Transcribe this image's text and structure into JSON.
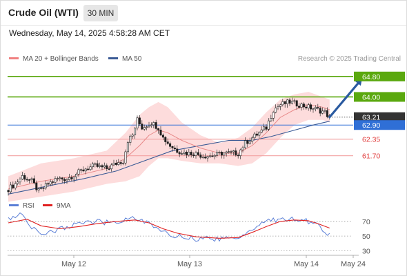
{
  "header": {
    "title": "Crude Oil (WTI)",
    "timeframe": "30 MIN"
  },
  "datetime": "Wednesday, May 14, 2025 4:58:28 AM CET",
  "legend": {
    "items": [
      {
        "label": "MA 20 + Bollinger Bands",
        "color": "#f08080"
      },
      {
        "label": "MA 50",
        "color": "#3a5a95"
      }
    ],
    "credit": "Research © 2025 Trading Central"
  },
  "colors": {
    "resistance": "#5aa80e",
    "current": "#333333",
    "pivot": "#2f6fd6",
    "support": "#e03a3a",
    "support_line": "#f2a3a3",
    "band": "#fddcdc",
    "ma20": "#e88a8a",
    "ma50": "#3a5a95",
    "candle_up": "#2e7d32",
    "candle_down": "#c62828",
    "rsi": "#5b7fd6",
    "rsi_ma": "#e02020",
    "arrow": "#2a5aa0"
  },
  "levels": {
    "resistances": [
      {
        "label": "64.80",
        "value": 64.8
      },
      {
        "label": "64.00",
        "value": 64.0
      }
    ],
    "current": {
      "label": "63.21",
      "value": 63.21
    },
    "pivot": {
      "label": "62.90",
      "value": 62.9
    },
    "supports": [
      {
        "label": "62.35",
        "value": 62.35
      },
      {
        "label": "61.70",
        "value": 61.7
      }
    ]
  },
  "rsi_panel": {
    "legend": [
      {
        "label": "RSI",
        "color": "#5b7fd6"
      },
      {
        "label": "9MA",
        "color": "#e02020"
      }
    ],
    "ticks": [
      {
        "label": "70",
        "value": 70
      },
      {
        "label": "50",
        "value": 50
      },
      {
        "label": "30",
        "value": 30
      }
    ]
  },
  "x_axis": {
    "ticks": [
      "May 12",
      "May 13",
      "May 14",
      "May 24"
    ]
  },
  "chart_data": [
    {
      "type": "candlestick",
      "title": "Crude Oil (WTI)",
      "timeframe": "30 MIN",
      "ylim": [
        60.1,
        65.2
      ],
      "close_path": [
        [
          0,
          60.4
        ],
        [
          3,
          60.6
        ],
        [
          6,
          60.9
        ],
        [
          10,
          60.7
        ],
        [
          13,
          60.3
        ],
        [
          17,
          60.6
        ],
        [
          21,
          60.8
        ],
        [
          25,
          60.8
        ],
        [
          29,
          61.0
        ],
        [
          33,
          61.2
        ],
        [
          37,
          61.3
        ],
        [
          42,
          61.2
        ],
        [
          46,
          61.4
        ],
        [
          49,
          61.5
        ],
        [
          51,
          62.3
        ],
        [
          53,
          62.5
        ],
        [
          55,
          63.1
        ],
        [
          57,
          62.8
        ],
        [
          61,
          63.0
        ],
        [
          64,
          62.8
        ],
        [
          66,
          62.4
        ],
        [
          69,
          62.1
        ],
        [
          72,
          61.9
        ],
        [
          76,
          61.8
        ],
        [
          79,
          61.8
        ],
        [
          83,
          61.7
        ],
        [
          87,
          61.7
        ],
        [
          91,
          61.8
        ],
        [
          95,
          61.8
        ],
        [
          98,
          61.8
        ],
        [
          101,
          62.2
        ],
        [
          104,
          62.4
        ],
        [
          107,
          62.6
        ],
        [
          110,
          62.8
        ],
        [
          113,
          63.5
        ],
        [
          116,
          63.7
        ],
        [
          120,
          63.8
        ],
        [
          124,
          63.7
        ],
        [
          128,
          63.6
        ],
        [
          132,
          63.5
        ],
        [
          135,
          63.4
        ],
        [
          137,
          63.2
        ]
      ],
      "ma20_path": [
        [
          0,
          60.4
        ],
        [
          14,
          60.7
        ],
        [
          28,
          60.9
        ],
        [
          42,
          61.2
        ],
        [
          50,
          61.6
        ],
        [
          56,
          62.1
        ],
        [
          60,
          62.5
        ],
        [
          64,
          62.7
        ],
        [
          68,
          62.6
        ],
        [
          74,
          62.3
        ],
        [
          82,
          62.0
        ],
        [
          90,
          61.8
        ],
        [
          98,
          61.8
        ],
        [
          104,
          62.1
        ],
        [
          110,
          62.6
        ],
        [
          116,
          63.2
        ],
        [
          122,
          63.5
        ],
        [
          128,
          63.7
        ],
        [
          134,
          63.6
        ],
        [
          137,
          63.5
        ]
      ],
      "ma50_path": [
        [
          0,
          60.2
        ],
        [
          16,
          60.5
        ],
        [
          32,
          60.8
        ],
        [
          46,
          61.1
        ],
        [
          58,
          61.5
        ],
        [
          70,
          61.9
        ],
        [
          82,
          62.1
        ],
        [
          94,
          62.3
        ],
        [
          104,
          62.3
        ],
        [
          112,
          62.45
        ],
        [
          120,
          62.65
        ],
        [
          130,
          62.9
        ],
        [
          137,
          63.05
        ]
      ],
      "band_upper": [
        [
          0,
          60.9
        ],
        [
          14,
          61.4
        ],
        [
          28,
          61.6
        ],
        [
          42,
          61.9
        ],
        [
          50,
          62.6
        ],
        [
          56,
          63.3
        ],
        [
          60,
          63.6
        ],
        [
          64,
          63.8
        ],
        [
          68,
          63.6
        ],
        [
          74,
          63.0
        ],
        [
          82,
          62.5
        ],
        [
          90,
          62.2
        ],
        [
          98,
          62.4
        ],
        [
          104,
          62.8
        ],
        [
          110,
          63.4
        ],
        [
          116,
          63.9
        ],
        [
          122,
          64.1
        ],
        [
          128,
          64.2
        ],
        [
          134,
          64.0
        ],
        [
          137,
          63.9
        ]
      ],
      "band_lower": [
        [
          0,
          59.9
        ],
        [
          14,
          60.1
        ],
        [
          28,
          60.3
        ],
        [
          42,
          60.6
        ],
        [
          50,
          60.7
        ],
        [
          56,
          60.9
        ],
        [
          60,
          61.3
        ],
        [
          64,
          61.6
        ],
        [
          68,
          61.6
        ],
        [
          74,
          61.5
        ],
        [
          82,
          61.4
        ],
        [
          90,
          61.4
        ],
        [
          98,
          61.3
        ],
        [
          104,
          61.4
        ],
        [
          110,
          61.8
        ],
        [
          116,
          62.4
        ],
        [
          122,
          62.9
        ],
        [
          128,
          63.1
        ],
        [
          134,
          63.1
        ],
        [
          137,
          63.0
        ]
      ],
      "projection": {
        "from": [
          137,
          63.21
        ],
        "to": [
          151,
          64.8
        ]
      }
    },
    {
      "type": "line",
      "title": "RSI",
      "ylim": [
        20,
        85
      ],
      "series": [
        {
          "name": "RSI",
          "color": "#5b7fd6",
          "values": [
            [
              0,
              74
            ],
            [
              6,
              80
            ],
            [
              10,
              62
            ],
            [
              14,
              52
            ],
            [
              20,
              58
            ],
            [
              28,
              66
            ],
            [
              36,
              70
            ],
            [
              44,
              68
            ],
            [
              52,
              75
            ],
            [
              56,
              74
            ],
            [
              60,
              66
            ],
            [
              66,
              55
            ],
            [
              72,
              50
            ],
            [
              80,
              46
            ],
            [
              90,
              46
            ],
            [
              98,
              48
            ],
            [
              104,
              60
            ],
            [
              110,
              70
            ],
            [
              116,
              73
            ],
            [
              122,
              73
            ],
            [
              128,
              70
            ],
            [
              132,
              64
            ],
            [
              137,
              52
            ]
          ]
        },
        {
          "name": "9MA",
          "color": "#e02020",
          "values": [
            [
              0,
              68
            ],
            [
              8,
              73
            ],
            [
              14,
              64
            ],
            [
              22,
              60
            ],
            [
              30,
              63
            ],
            [
              38,
              67
            ],
            [
              46,
              70
            ],
            [
              54,
              72
            ],
            [
              60,
              68
            ],
            [
              66,
              60
            ],
            [
              72,
              54
            ],
            [
              80,
              49
            ],
            [
              90,
              47
            ],
            [
              98,
              48
            ],
            [
              104,
              55
            ],
            [
              110,
              63
            ],
            [
              116,
              70
            ],
            [
              122,
              72
            ],
            [
              128,
              71
            ],
            [
              132,
              67
            ],
            [
              137,
              61
            ]
          ]
        }
      ]
    }
  ]
}
